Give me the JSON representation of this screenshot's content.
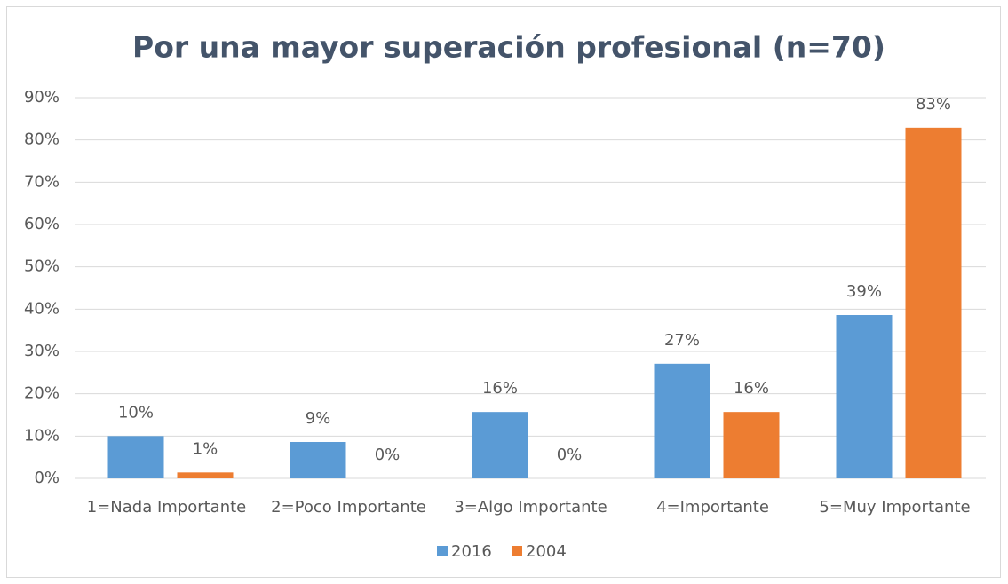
{
  "chart_data": {
    "type": "bar",
    "title": "Por una mayor superación profesional (n=70)",
    "categories": [
      "1=Nada Importante",
      "2=Poco Importante",
      "3=Algo Importante",
      "4=Importante",
      "5=Muy Importante"
    ],
    "series": [
      {
        "name": "2016",
        "color": "#5b9bd5",
        "values": [
          10,
          8.6,
          15.7,
          27.1,
          38.6
        ],
        "value_labels": [
          "10%",
          "9%",
          "16%",
          "27%",
          "39%"
        ]
      },
      {
        "name": "2004",
        "color": "#ed7d31",
        "values": [
          1.4,
          0,
          0,
          15.7,
          82.9
        ],
        "value_labels": [
          "1%",
          "0%",
          "0%",
          "16%",
          "83%"
        ]
      }
    ],
    "ylim": [
      0,
      90
    ],
    "yticks": [
      {
        "value": 0,
        "label": "0%"
      },
      {
        "value": 10,
        "label": "10%"
      },
      {
        "value": 20,
        "label": "20%"
      },
      {
        "value": 30,
        "label": "30%"
      },
      {
        "value": 40,
        "label": "40%"
      },
      {
        "value": 50,
        "label": "50%"
      },
      {
        "value": 60,
        "label": "60%"
      },
      {
        "value": 70,
        "label": "70%"
      },
      {
        "value": 80,
        "label": "80%"
      },
      {
        "value": 90,
        "label": "90%"
      }
    ],
    "grid": true,
    "legend": "bottom"
  }
}
